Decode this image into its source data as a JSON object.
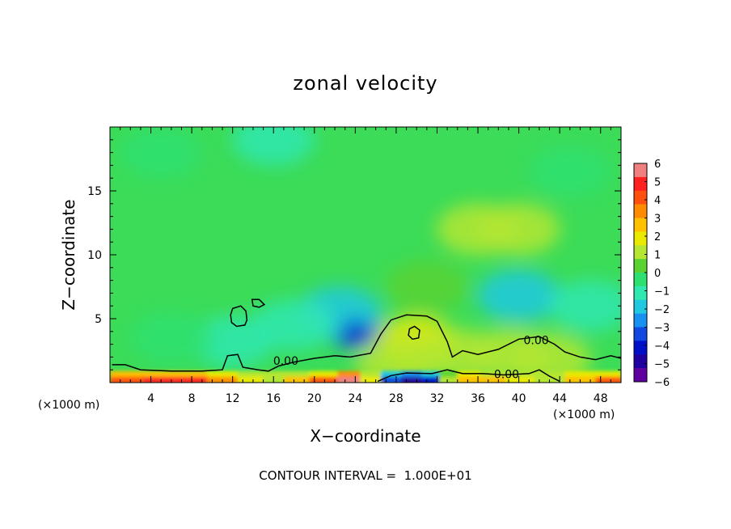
{
  "chart_data": {
    "type": "heatmap",
    "title": "zonal velocity",
    "xlabel": "X−coordinate",
    "ylabel": "Z−coordinate",
    "x_unit": "(×1000 m)",
    "x_unit_right": "(×1000 m)",
    "xlim": [
      0,
      50
    ],
    "ylim": [
      0,
      20
    ],
    "x_ticks": [
      4,
      8,
      12,
      16,
      20,
      24,
      28,
      32,
      36,
      40,
      44,
      48
    ],
    "y_ticks": [
      5,
      10,
      15
    ],
    "colorbar": {
      "ticks": [
        6,
        5,
        4,
        3,
        2,
        1,
        0,
        -1,
        -2,
        -3,
        -4,
        -5,
        -6
      ],
      "tick_labels": [
        "6",
        "5",
        "4",
        "3",
        "2",
        "1",
        "0",
        "−1",
        "−2",
        "−3",
        "−4",
        "−5",
        "−6"
      ],
      "colors": [
        "#f08080",
        "#ff2020",
        "#ff5010",
        "#ff8c00",
        "#ffc000",
        "#eaea00",
        "#b4e632",
        "#5ad232",
        "#2ee070",
        "#30e8b0",
        "#20c8e0",
        "#1890f0",
        "#1048e0",
        "#0010c8",
        "#2000a0",
        "#6000a0"
      ]
    },
    "contour_labels": [
      "0.00",
      "0.00",
      "0.00"
    ],
    "field_blobs": [
      {
        "x": 24.0,
        "z": 4.0,
        "v": -3.6
      },
      {
        "x": 22.5,
        "z": 5.5,
        "v": -1.8
      },
      {
        "x": 18.0,
        "z": 4.5,
        "v": -1.1
      },
      {
        "x": 12.0,
        "z": 3.2,
        "v": -1.3
      },
      {
        "x": 6.0,
        "z": 3.5,
        "v": -0.7
      },
      {
        "x": 30.0,
        "z": 3.2,
        "v": 1.7
      },
      {
        "x": 28.0,
        "z": 1.5,
        "v": 1.2
      },
      {
        "x": 39.0,
        "z": 2.2,
        "v": 1.3
      },
      {
        "x": 43.0,
        "z": 1.8,
        "v": 1.5
      },
      {
        "x": 34.0,
        "z": 2.2,
        "v": 0.9
      },
      {
        "x": 40.0,
        "z": 6.8,
        "v": -1.7
      },
      {
        "x": 36.0,
        "z": 12.0,
        "v": 0.8
      },
      {
        "x": 40.0,
        "z": 12.0,
        "v": 0.9
      },
      {
        "x": 16.0,
        "z": 19.0,
        "v": -1.2
      },
      {
        "x": 5.0,
        "z": 18.0,
        "v": -0.6
      },
      {
        "x": 45.0,
        "z": 16.5,
        "v": -0.4
      },
      {
        "x": 31.0,
        "z": 7.5,
        "v": 0.5
      },
      {
        "x": 47.0,
        "z": 6.0,
        "v": -1.0
      }
    ],
    "surface_band": [
      {
        "x": 1.5,
        "v": 4.5
      },
      {
        "x": 5.0,
        "v": 5.0
      },
      {
        "x": 8.0,
        "v": 4.8
      },
      {
        "x": 11.0,
        "v": 3.5
      },
      {
        "x": 14.0,
        "v": 2.0
      },
      {
        "x": 16.0,
        "v": 1.5
      },
      {
        "x": 18.0,
        "v": 2.5
      },
      {
        "x": 21.0,
        "v": 4.0
      },
      {
        "x": 23.5,
        "v": 5.5
      },
      {
        "x": 25.5,
        "v": 2.0
      },
      {
        "x": 27.5,
        "v": -3.0
      },
      {
        "x": 29.5,
        "v": -5.0
      },
      {
        "x": 31.5,
        "v": -4.0
      },
      {
        "x": 33.0,
        "v": 1.0
      },
      {
        "x": 35.0,
        "v": 3.0
      },
      {
        "x": 37.5,
        "v": 2.5
      },
      {
        "x": 40.0,
        "v": 2.0
      },
      {
        "x": 43.0,
        "v": 1.5
      },
      {
        "x": 46.0,
        "v": 3.0
      },
      {
        "x": 49.0,
        "v": 4.0
      }
    ],
    "contour_zero_lower": [
      [
        0.2,
        1.4
      ],
      [
        1.5,
        1.4
      ],
      [
        3,
        1.0
      ],
      [
        6,
        0.9
      ],
      [
        9,
        0.9
      ],
      [
        11,
        1.0
      ],
      [
        11.5,
        2.1
      ],
      [
        12.5,
        2.2
      ],
      [
        13,
        1.2
      ],
      [
        14.5,
        1.0
      ],
      [
        15.5,
        0.9
      ],
      [
        16.5,
        1.3
      ],
      [
        18,
        1.6
      ],
      [
        20,
        1.9
      ],
      [
        22,
        2.1
      ],
      [
        23.5,
        2.0
      ],
      [
        25.5,
        2.3
      ],
      [
        26.5,
        3.8
      ],
      [
        27.5,
        4.9
      ],
      [
        29,
        5.3
      ],
      [
        31,
        5.2
      ],
      [
        32,
        4.8
      ],
      [
        33,
        3.2
      ],
      [
        33.5,
        2.0
      ],
      [
        34.5,
        2.5
      ],
      [
        36,
        2.2
      ],
      [
        38,
        2.6
      ],
      [
        40,
        3.4
      ],
      [
        42,
        3.6
      ],
      [
        43.5,
        3.0
      ],
      [
        44.5,
        2.4
      ],
      [
        46,
        2.0
      ],
      [
        47.5,
        1.8
      ],
      [
        49,
        2.1
      ],
      [
        50,
        1.9
      ]
    ],
    "contour_zero_bottom": [
      [
        26.2,
        0.1
      ],
      [
        27.5,
        0.55
      ],
      [
        29,
        0.75
      ],
      [
        31.5,
        0.7
      ],
      [
        33,
        1.0
      ],
      [
        34.5,
        0.7
      ],
      [
        36.5,
        0.7
      ],
      [
        38.5,
        0.6
      ],
      [
        41,
        0.7
      ],
      [
        42,
        1.0
      ],
      [
        43,
        0.5
      ],
      [
        44,
        0.1
      ]
    ],
    "contour_zero_loops": [
      [
        [
          12.0,
          5.8
        ],
        [
          12.8,
          6.0
        ],
        [
          13.3,
          5.6
        ],
        [
          13.4,
          4.9
        ],
        [
          13.2,
          4.5
        ],
        [
          12.4,
          4.4
        ],
        [
          11.9,
          4.7
        ],
        [
          11.8,
          5.3
        ]
      ],
      [
        [
          13.9,
          6.5
        ],
        [
          14.6,
          6.5
        ],
        [
          15.1,
          6.1
        ],
        [
          14.6,
          5.9
        ],
        [
          14.0,
          6.0
        ]
      ],
      [
        [
          29.3,
          4.2
        ],
        [
          29.8,
          4.4
        ],
        [
          30.3,
          4.1
        ],
        [
          30.2,
          3.5
        ],
        [
          29.6,
          3.4
        ],
        [
          29.2,
          3.7
        ]
      ]
    ],
    "footer": "CONTOUR INTERVAL =  1.000E+01"
  }
}
